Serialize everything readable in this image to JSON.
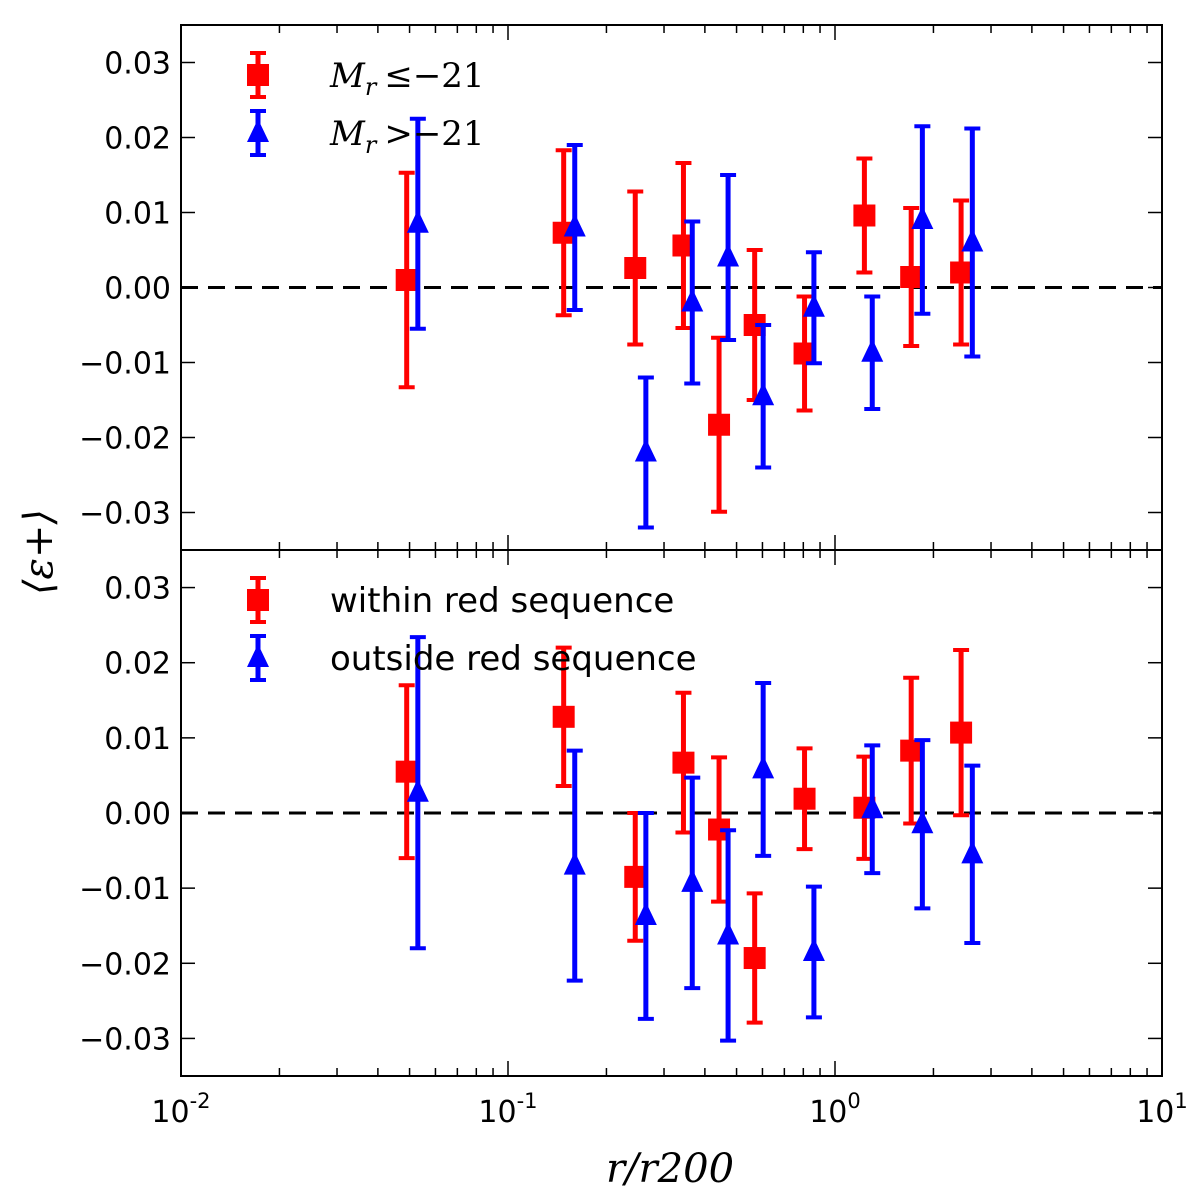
{
  "chart_data": {
    "type": "scatter",
    "xscale": "log",
    "xlim": [
      0.01,
      10
    ],
    "ylim": [
      -0.035,
      0.035
    ],
    "xlabel": "r/r200",
    "ylabel": "⟨ε+⟩",
    "x_tick_labels": [
      {
        "base": "10",
        "exp": "-2"
      },
      {
        "base": "10",
        "exp": "-1"
      },
      {
        "base": "10",
        "exp": "0"
      },
      {
        "base": "10",
        "exp": "1"
      }
    ],
    "y_tick_labels": [
      "0.03",
      "0.02",
      "0.01",
      "0.00",
      "−0.01",
      "−0.02",
      "−0.03"
    ],
    "reference_line_y": 0,
    "panels": [
      {
        "name": "magnitude-split",
        "legend_location": "top-left",
        "series": [
          {
            "name": "Mr ≤ −21",
            "label_math": {
              "base": "M",
              "sub": "r",
              "rel": "≤",
              "value": "−21"
            },
            "color": "#ff0000",
            "marker": "square",
            "x": [
              0.049,
              0.148,
              0.245,
              0.344,
              0.442,
              0.568,
              0.807,
              1.23,
              1.71,
              2.43
            ],
            "y": [
              0.001,
              0.0073,
              0.0026,
              0.0056,
              -0.0183,
              -0.005,
              -0.0088,
              0.0096,
              0.0014,
              0.002
            ],
            "yerr": [
              0.0143,
              0.011,
              0.0102,
              0.011,
              0.0116,
              0.01,
              0.0076,
              0.0076,
              0.0092,
              0.0096
            ]
          },
          {
            "name": "Mr > −21",
            "label_math": {
              "base": "M",
              "sub": "r",
              "rel": ">",
              "value": "−21"
            },
            "color": "#0000ff",
            "marker": "triangle",
            "x": [
              0.053,
              0.16,
              0.264,
              0.366,
              0.471,
              0.603,
              0.862,
              1.3,
              1.85,
              2.63
            ],
            "y": [
              0.0085,
              0.008,
              -0.022,
              -0.002,
              0.004,
              -0.0145,
              -0.0027,
              -0.0087,
              0.009,
              0.006
            ],
            "yerr": [
              0.014,
              0.011,
              0.01,
              0.0108,
              0.011,
              0.0095,
              0.0074,
              0.0075,
              0.0125,
              0.0152
            ]
          }
        ]
      },
      {
        "name": "red-sequence-split",
        "legend_location": "top-left",
        "series": [
          {
            "name": "within red sequence",
            "color": "#ff0000",
            "marker": "square",
            "x": [
              0.049,
              0.148,
              0.245,
              0.344,
              0.442,
              0.568,
              0.807,
              1.23,
              1.71,
              2.43
            ],
            "y": [
              0.0055,
              0.0128,
              -0.0085,
              0.0067,
              -0.0022,
              -0.0193,
              0.0019,
              0.0007,
              0.0083,
              0.0107
            ],
            "yerr": [
              0.0115,
              0.0092,
              0.0085,
              0.0093,
              0.0096,
              0.0086,
              0.0067,
              0.0068,
              0.0097,
              0.011
            ]
          },
          {
            "name": "outside red sequence",
            "color": "#0000ff",
            "marker": "triangle",
            "x": [
              0.053,
              0.16,
              0.264,
              0.366,
              0.471,
              0.603,
              0.862,
              1.3,
              1.85,
              2.63
            ],
            "y": [
              0.0027,
              -0.007,
              -0.0137,
              -0.0093,
              -0.0163,
              0.0058,
              -0.0185,
              0.0005,
              -0.0015,
              -0.0055
            ],
            "yerr": [
              0.0207,
              0.0153,
              0.0137,
              0.014,
              0.014,
              0.0115,
              0.0087,
              0.0085,
              0.0112,
              0.0118
            ]
          }
        ]
      }
    ]
  }
}
